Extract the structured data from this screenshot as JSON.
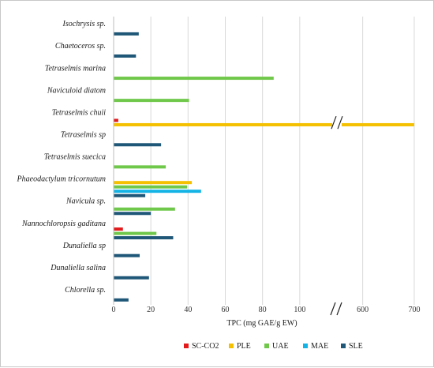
{
  "chart_data": {
    "type": "bar",
    "orientation": "horizontal",
    "xlabel": "TPC (mg GAE/g EW)",
    "ylabel": "",
    "axis_break": true,
    "x_ticks": [
      0,
      20,
      40,
      60,
      80,
      100,
      600,
      700
    ],
    "ylim": [
      0,
      120
    ],
    "upper_segment_range": [
      550,
      720
    ],
    "grid": "vertical",
    "legend_position": "bottom",
    "categories": [
      "Isochrysis sp.",
      "Chaetoceros sp.",
      "Tetraselmis marina",
      "Naviculoid diatom",
      "Tetraselmis chuii",
      "Tetraselmis sp",
      "Tetraselmis suecica",
      "Phaeodactylum tricornutum",
      "Navicula sp.",
      "Nannochloropsis gaditana",
      "Dunaliella sp",
      "Dunaliella salina",
      "Chlorella sp."
    ],
    "series": [
      {
        "name": "SC-CO2",
        "color": "#e31a1c",
        "values": [
          null,
          null,
          null,
          null,
          2.5,
          null,
          null,
          null,
          null,
          5,
          null,
          null,
          null
        ]
      },
      {
        "name": "PLE",
        "color": "#f5c000",
        "values": [
          null,
          null,
          null,
          null,
          700,
          null,
          null,
          42,
          null,
          null,
          null,
          null,
          null
        ]
      },
      {
        "name": "UAE",
        "color": "#70c84b",
        "values": [
          null,
          null,
          86,
          40.5,
          null,
          null,
          28,
          39.5,
          33,
          23,
          null,
          null,
          null
        ]
      },
      {
        "name": "MAE",
        "color": "#14b3e6",
        "values": [
          null,
          null,
          null,
          null,
          null,
          null,
          null,
          47,
          null,
          null,
          null,
          null,
          null
        ]
      },
      {
        "name": "SLE",
        "color": "#1f5778",
        "values": [
          13.5,
          12,
          null,
          null,
          null,
          25.5,
          null,
          17,
          20,
          32,
          14,
          19,
          8
        ]
      }
    ]
  }
}
